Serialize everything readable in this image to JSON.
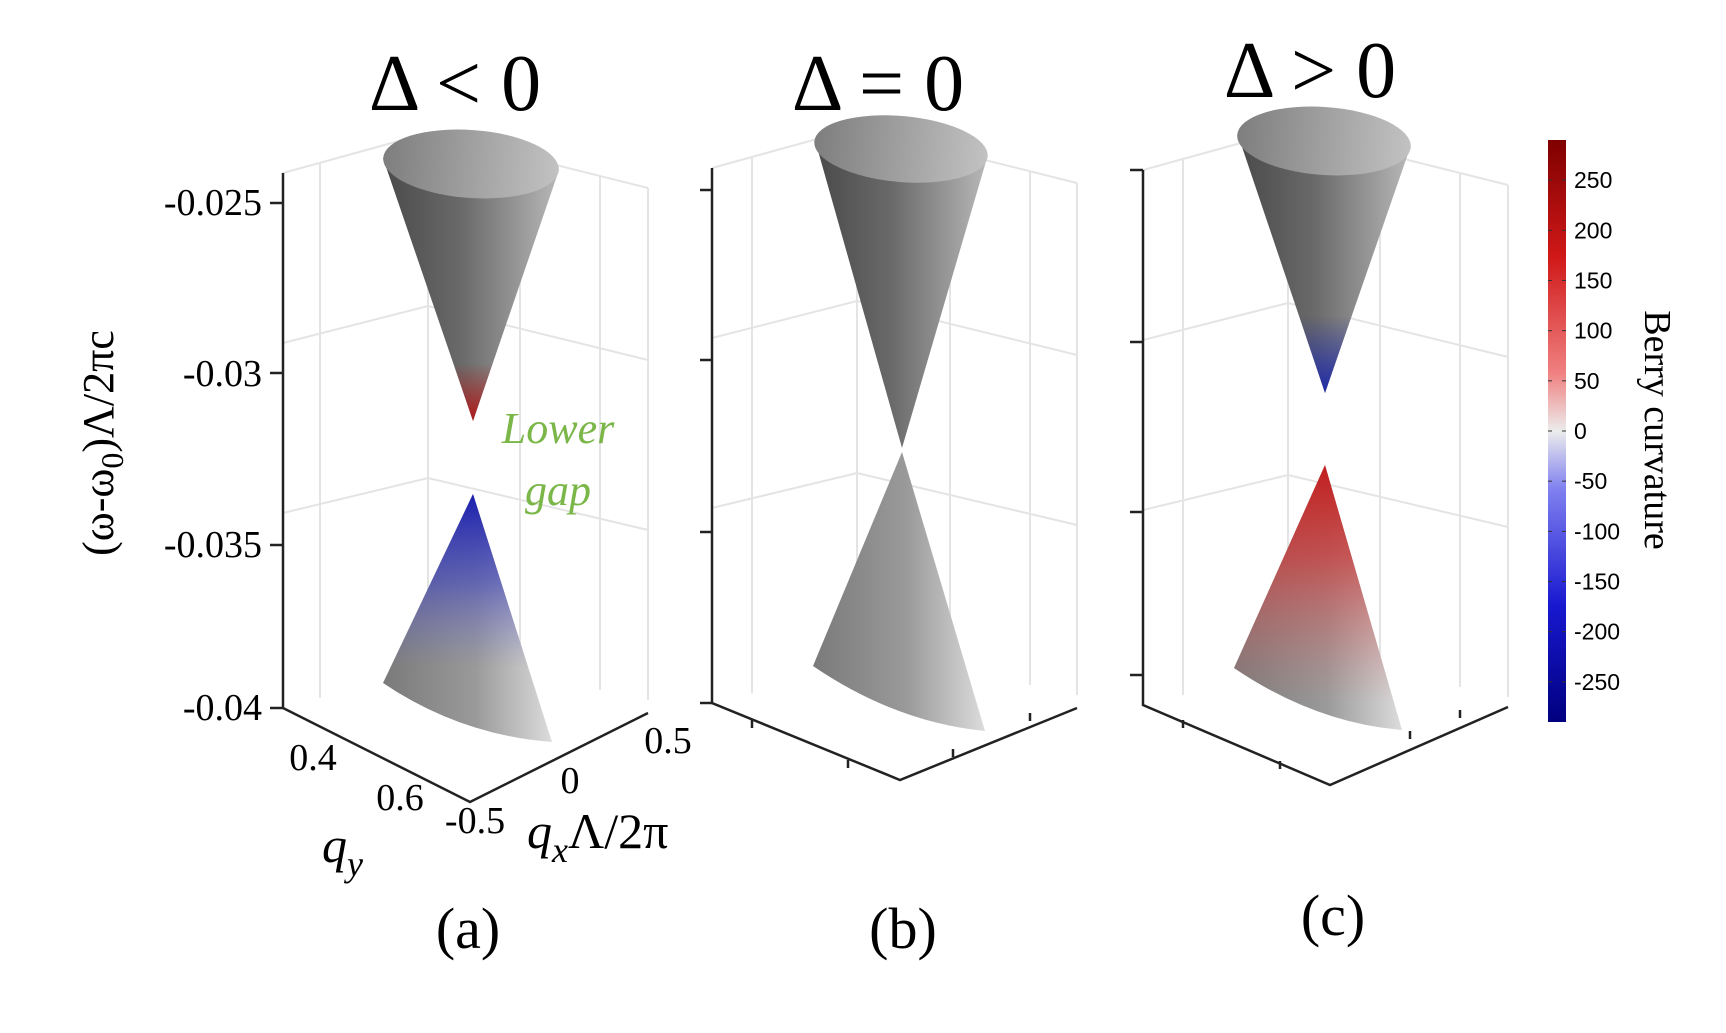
{
  "panels": [
    {
      "title": "Δ < 0",
      "label": "(a)",
      "upper_tip_color": "#b01818",
      "lower_tip_color": "#1a1fae"
    },
    {
      "title": "Δ = 0",
      "label": "(b)",
      "upper_tip_color": "#505050",
      "lower_tip_color": "#b4b4b4"
    },
    {
      "title": "Δ > 0",
      "label": "(c)",
      "upper_tip_color": "#1f2aa8",
      "lower_tip_color": "#c21d1d"
    }
  ],
  "axes": {
    "z_label_main": "(ω-ω",
    "z_label_sub": "0",
    "z_label_rest": ")Λ/2πc",
    "z_ticks": [
      "-0.025",
      "-0.03",
      "-0.035",
      "-0.04"
    ],
    "y_ticks": [
      "0.4",
      "0.6"
    ],
    "x_ticks": [
      "-0.5",
      "0",
      "0.5"
    ],
    "y_label_main": "q",
    "y_label_sub": "y",
    "x_label_main": "q",
    "x_label_sub": "x",
    "x_label_rest": "Λ/2π"
  },
  "annotation": {
    "line1": "Lower",
    "line2": "gap"
  },
  "colorbar": {
    "label": "Berry curvature",
    "ticks": [
      "250",
      "200",
      "150",
      "100",
      "50",
      "0",
      "-50",
      "-100",
      "-150",
      "-200",
      "-250"
    ],
    "range": [
      -290,
      290
    ],
    "colors": {
      "low": "#00007f",
      "mid": "#ececec",
      "high": "#7f0000"
    }
  }
}
